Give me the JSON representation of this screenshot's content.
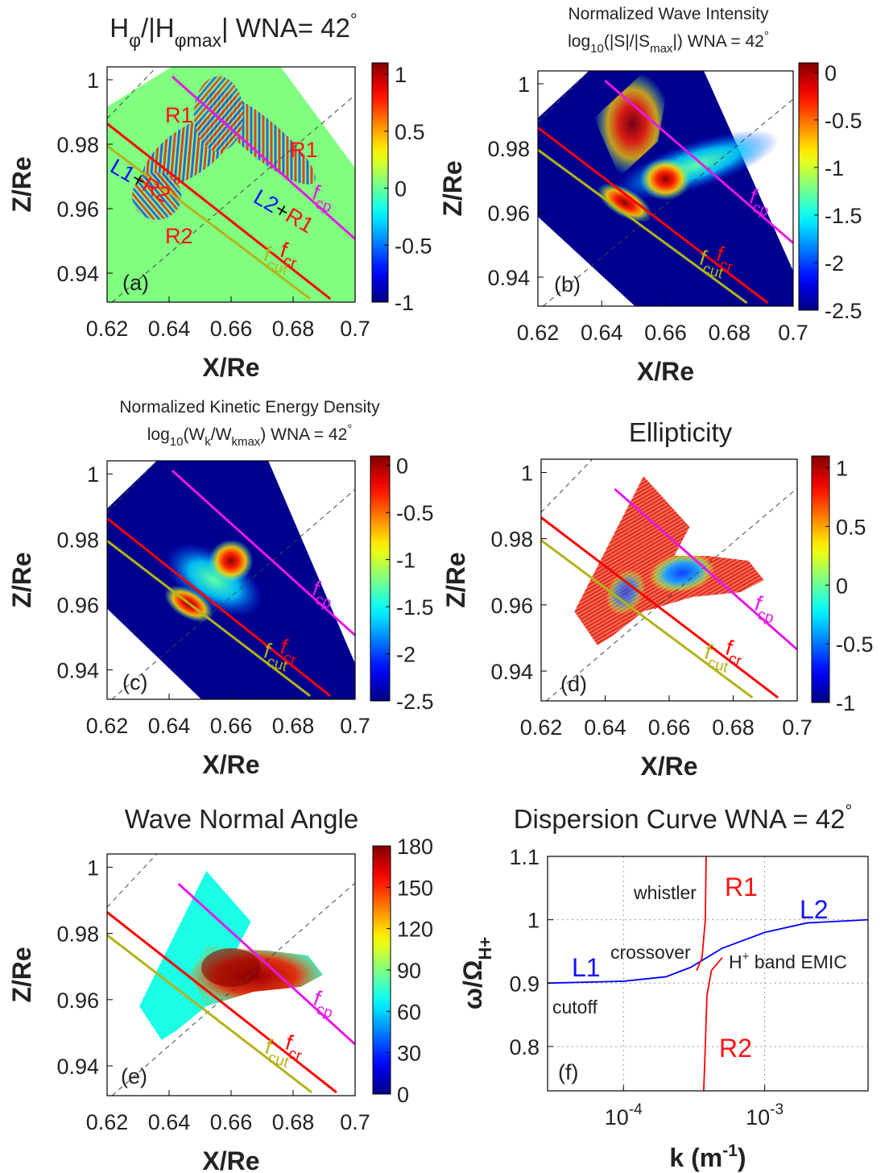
{
  "chart_data": [
    {
      "type": "heatmap",
      "title": [
        "H",
        "φ",
        "/|H",
        "φmax",
        "| WNA= 42",
        "°"
      ],
      "xlabel": "X/Re",
      "ylabel": "Z/Re",
      "xlim": [
        0.62,
        0.7
      ],
      "ylim": [
        0.931,
        1.004
      ],
      "xticks": [
        0.62,
        0.64,
        0.66,
        0.68,
        0.7
      ],
      "yticks": [
        0.94,
        0.96,
        0.98,
        1
      ],
      "colorbar": {
        "clim": [
          -1,
          1.1
        ],
        "ticks": [
          -1,
          -0.5,
          0,
          0.5,
          1
        ],
        "colormap": "jet"
      },
      "series": [
        {
          "label": [
            "f",
            "cp"
          ],
          "color": "#e619e6",
          "x": [
            0.641,
            0.7
          ],
          "values": [
            1.001,
            0.9506
          ]
        },
        {
          "label": [
            "f",
            "cr"
          ],
          "color": "#ff0000",
          "x": [
            0.62,
            0.692
          ],
          "values": [
            0.9864,
            0.932
          ]
        },
        {
          "label": [
            "f",
            "cut"
          ],
          "color": "#b3b319",
          "x": [
            0.62,
            0.6855
          ],
          "values": [
            0.9795,
            0.932
          ]
        }
      ],
      "annotations": [
        "R1",
        "R1",
        "L1",
        "+",
        "R2",
        "L2",
        "+",
        "R1",
        "R2",
        "(a)"
      ]
    },
    {
      "type": "heatmap",
      "title": [
        "Normalized Wave Intensity",
        "log",
        "10",
        "(|S|/|S",
        "max",
        "|) WNA = 42",
        "°"
      ],
      "xlabel": "X/Re",
      "ylabel": "Z/Re",
      "xlim": [
        0.62,
        0.7
      ],
      "ylim": [
        0.931,
        1.004
      ],
      "xticks": [
        0.62,
        0.64,
        0.66,
        0.68,
        0.7
      ],
      "yticks": [
        0.94,
        0.96,
        0.98,
        1
      ],
      "colorbar": {
        "clim": [
          -2.5,
          0.1
        ],
        "ticks": [
          -2.5,
          -2,
          -1.5,
          -1,
          -0.5,
          0
        ],
        "colormap": "jet"
      },
      "series": [
        {
          "label": [
            "f",
            "cp"
          ],
          "color": "#e619e6",
          "x": [
            0.641,
            0.7
          ],
          "values": [
            1.001,
            0.9506
          ]
        },
        {
          "label": [
            "f",
            "cr"
          ],
          "color": "#ff0000",
          "x": [
            0.62,
            0.692
          ],
          "values": [
            0.9864,
            0.932
          ]
        },
        {
          "label": [
            "f",
            "cut"
          ],
          "color": "#b3b319",
          "x": [
            0.62,
            0.6855
          ],
          "values": [
            0.9795,
            0.932
          ]
        }
      ],
      "annotations": [
        "(b)"
      ]
    },
    {
      "type": "heatmap",
      "title": [
        "Normalized Kinetic Energy Density",
        "log",
        "10",
        "(W",
        "k",
        "/W",
        "kmax",
        ") WNA = 42",
        "°"
      ],
      "xlabel": "X/Re",
      "ylabel": "Z/Re",
      "xlim": [
        0.62,
        0.7
      ],
      "ylim": [
        0.931,
        1.004
      ],
      "xticks": [
        0.62,
        0.64,
        0.66,
        0.68,
        0.7
      ],
      "yticks": [
        0.94,
        0.96,
        0.98,
        1
      ],
      "colorbar": {
        "clim": [
          -2.5,
          0.1
        ],
        "ticks": [
          -2.5,
          -2,
          -1.5,
          -1,
          -0.5,
          0
        ],
        "colormap": "jet"
      },
      "series": [
        {
          "label": [
            "f",
            "cp"
          ],
          "color": "#e619e6",
          "x": [
            0.641,
            0.7
          ],
          "values": [
            1.001,
            0.9506
          ]
        },
        {
          "label": [
            "f",
            "cr"
          ],
          "color": "#ff0000",
          "x": [
            0.62,
            0.692
          ],
          "values": [
            0.9864,
            0.932
          ]
        },
        {
          "label": [
            "f",
            "cut"
          ],
          "color": "#b3b319",
          "x": [
            0.62,
            0.6855
          ],
          "values": [
            0.9795,
            0.932
          ]
        }
      ],
      "annotations": [
        "(c)"
      ]
    },
    {
      "type": "heatmap",
      "title": [
        "Ellipticity"
      ],
      "xlabel": "X/Re",
      "ylabel": "Z/Re",
      "xlim": [
        0.62,
        0.7
      ],
      "ylim": [
        0.931,
        1.004
      ],
      "xticks": [
        0.62,
        0.64,
        0.66,
        0.68,
        0.7
      ],
      "yticks": [
        0.94,
        0.96,
        0.98,
        1
      ],
      "colorbar": {
        "clim": [
          -1,
          1.1
        ],
        "ticks": [
          -1,
          -0.5,
          0,
          0.5,
          1
        ],
        "colormap": "jet"
      },
      "series": [
        {
          "label": [
            "f",
            "cp"
          ],
          "color": "#e619e6",
          "x": [
            0.643,
            0.7
          ],
          "values": [
            0.995,
            0.9465
          ]
        },
        {
          "label": [
            "f",
            "cr"
          ],
          "color": "#ff0000",
          "x": [
            0.62,
            0.694
          ],
          "values": [
            0.9864,
            0.932
          ]
        },
        {
          "label": [
            "f",
            "cut"
          ],
          "color": "#b3b319",
          "x": [
            0.62,
            0.686
          ],
          "values": [
            0.9795,
            0.932
          ]
        }
      ],
      "annotations": [
        "(d)"
      ]
    },
    {
      "type": "heatmap",
      "title": [
        "Wave Normal Angle"
      ],
      "xlabel": "X/Re",
      "ylabel": "Z/Re",
      "xlim": [
        0.62,
        0.7
      ],
      "ylim": [
        0.931,
        1.004
      ],
      "xticks": [
        0.62,
        0.64,
        0.66,
        0.68,
        0.7
      ],
      "yticks": [
        0.94,
        0.96,
        0.98,
        1
      ],
      "colorbar": {
        "clim": [
          0,
          180
        ],
        "ticks": [
          0,
          30,
          60,
          90,
          120,
          150,
          180
        ],
        "colormap": "jet"
      },
      "series": [
        {
          "label": [
            "f",
            "cp"
          ],
          "color": "#e619e6",
          "x": [
            0.643,
            0.7
          ],
          "values": [
            0.995,
            0.9465
          ]
        },
        {
          "label": [
            "f",
            "cr"
          ],
          "color": "#ff0000",
          "x": [
            0.62,
            0.694
          ],
          "values": [
            0.9864,
            0.932
          ]
        },
        {
          "label": [
            "f",
            "cut"
          ],
          "color": "#b3b319",
          "x": [
            0.62,
            0.686
          ],
          "values": [
            0.9795,
            0.932
          ]
        }
      ],
      "annotations": [
        "(e)"
      ]
    },
    {
      "type": "line",
      "title": [
        "Dispersion Curve WNA = 42",
        "°"
      ],
      "xlabel": [
        "k (m",
        "-1",
        ")"
      ],
      "ylabel": [
        "ω/Ω",
        "H+"
      ],
      "xlim": [
        2.9e-05,
        0.0054
      ],
      "ylim": [
        0.73,
        1.1
      ],
      "log_x": true,
      "grid": true,
      "xticks": [
        {
          "value": 0.0001,
          "label": "10",
          "exponent": "-4"
        },
        {
          "value": 0.001,
          "label": "10",
          "exponent": "-3"
        }
      ],
      "yticks": [
        0.8,
        0.9,
        1,
        1.1
      ],
      "series": [
        {
          "color": "#0000ff",
          "x": [
            2.9e-05,
            0.0001,
            0.0002,
            0.0003,
            0.0005,
            0.001,
            0.002,
            0.0054
          ],
          "values": [
            0.9,
            0.903,
            0.91,
            0.925,
            0.955,
            0.98,
            0.995,
            1.0
          ]
        },
        {
          "color": "#ff0000",
          "x": [
            0.00033,
            0.00036,
            0.00038,
            0.000385
          ],
          "values": [
            0.92,
            0.94,
            1.0,
            1.1
          ]
        },
        {
          "color": "#ff0000",
          "x": [
            0.00037,
            0.00038,
            0.00039,
            0.00042,
            0.0005
          ],
          "values": [
            0.73,
            0.8,
            0.88,
            0.92,
            0.94
          ]
        }
      ],
      "annotations": [
        "whistler",
        "R1",
        "L2",
        "L1",
        "crossover",
        "cutoff",
        "R2",
        "(f)",
        "H",
        "+",
        " band EMIC"
      ]
    }
  ]
}
